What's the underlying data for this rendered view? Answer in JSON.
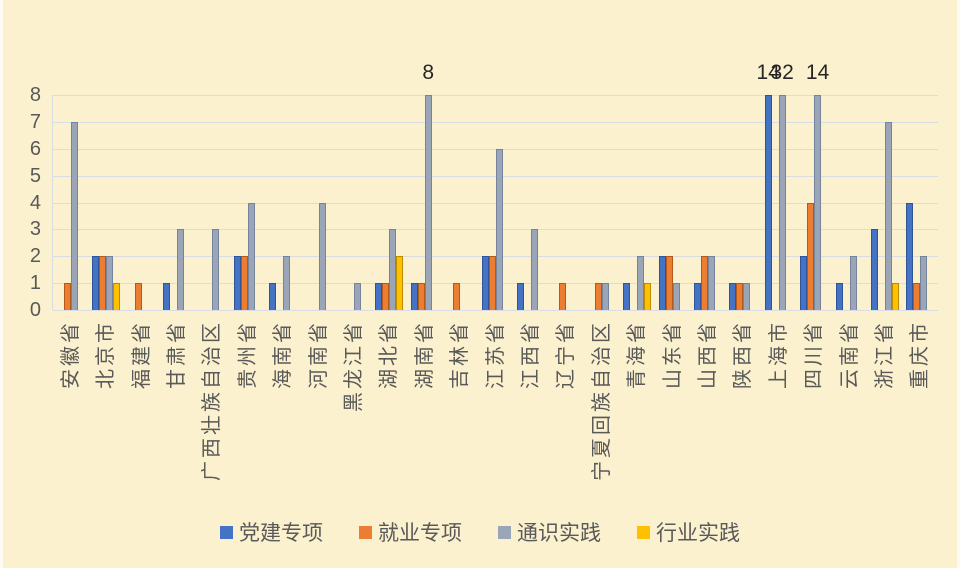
{
  "chart_data": {
    "type": "bar",
    "categories": [
      "安徽省",
      "北京市",
      "福建省",
      "甘肃省",
      "广西壮族自治区",
      "贵州省",
      "海南省",
      "河南省",
      "黑龙江省",
      "湖北省",
      "湖南省",
      "吉林省",
      "江苏省",
      "江西省",
      "辽宁省",
      "宁夏回族自治区",
      "青海省",
      "山东省",
      "山西省",
      "陕西省",
      "上海市",
      "四川省",
      "云南省",
      "浙江省",
      "重庆市"
    ],
    "series": [
      {
        "name": "党建专项",
        "color": "#4472C4",
        "border_color": "#2F5597",
        "values": [
          0,
          2,
          0,
          1,
          0,
          2,
          1,
          0,
          0,
          1,
          1,
          0,
          2,
          1,
          0,
          0,
          1,
          2,
          1,
          1,
          14,
          2,
          1,
          3,
          4
        ]
      },
      {
        "name": "就业专项",
        "color": "#ED7D31",
        "border_color": "#B25A1B",
        "values": [
          1,
          2,
          1,
          0,
          0,
          2,
          0,
          0,
          0,
          1,
          1,
          1,
          2,
          0,
          1,
          1,
          0,
          2,
          2,
          1,
          0,
          4,
          0,
          0,
          1
        ]
      },
      {
        "name": "通识实践",
        "color": "#9AA5B8",
        "border_color": "#76849B",
        "values": [
          7,
          2,
          0,
          3,
          3,
          4,
          2,
          4,
          1,
          3,
          8,
          0,
          6,
          3,
          0,
          1,
          2,
          1,
          2,
          1,
          32,
          14,
          2,
          7,
          2
        ]
      },
      {
        "name": "行业实践",
        "color": "#FFC000",
        "border_color": "#BC8C00",
        "values": [
          0,
          1,
          0,
          0,
          0,
          0,
          0,
          0,
          0,
          2,
          0,
          0,
          0,
          0,
          0,
          0,
          1,
          0,
          0,
          0,
          0,
          0,
          0,
          1,
          0
        ]
      }
    ],
    "ylim": [
      0,
      8
    ],
    "yticks": [
      0,
      1,
      2,
      3,
      4,
      5,
      6,
      7,
      8
    ],
    "grid": true,
    "legend_position": "bottom",
    "axis_clip_max": 8,
    "annotations": [
      {
        "category": "湖南省",
        "series": "通识实践",
        "label": "8"
      },
      {
        "category": "上海市",
        "series": "党建专项",
        "label": "14"
      },
      {
        "category": "上海市",
        "series": "通识实践",
        "label": "32"
      },
      {
        "category": "四川省",
        "series": "通识实践",
        "label": "14"
      }
    ]
  },
  "colors": {
    "background": "#FCF1CE",
    "gridline": "#D9DCE2",
    "axis_text": "#595959",
    "annotation_text": "#262626"
  }
}
